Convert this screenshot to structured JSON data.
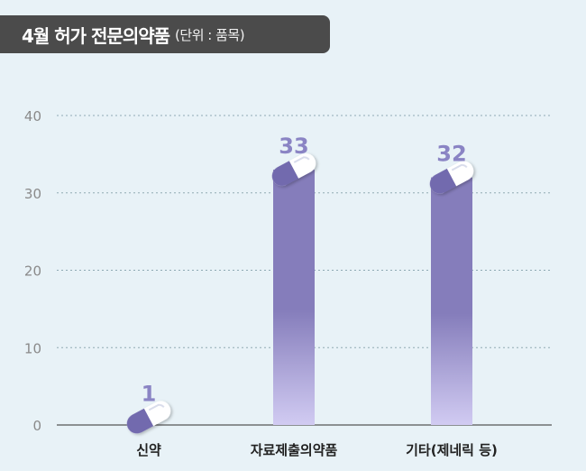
{
  "title": "4월 허가 전문의약품",
  "subtitle": "(단위 : 품목)",
  "colors": {
    "bar_top": "#857dbb",
    "bar_bottom": "#d1cbf2",
    "value_label": "#8a84c4",
    "background": "#e8f2f7",
    "grid": "#8fa9b4"
  },
  "chart_data": {
    "type": "bar",
    "title": "4월 허가 전문의약품",
    "subtitle": "(단위 : 품목)",
    "categories": [
      "신약",
      "자료제출의약품",
      "기타(제네릭 등)"
    ],
    "values": [
      1,
      33,
      32
    ],
    "ylim": [
      0,
      40
    ],
    "yticks": [
      0,
      10,
      20,
      30,
      40
    ],
    "grid": true,
    "legend": "none"
  }
}
